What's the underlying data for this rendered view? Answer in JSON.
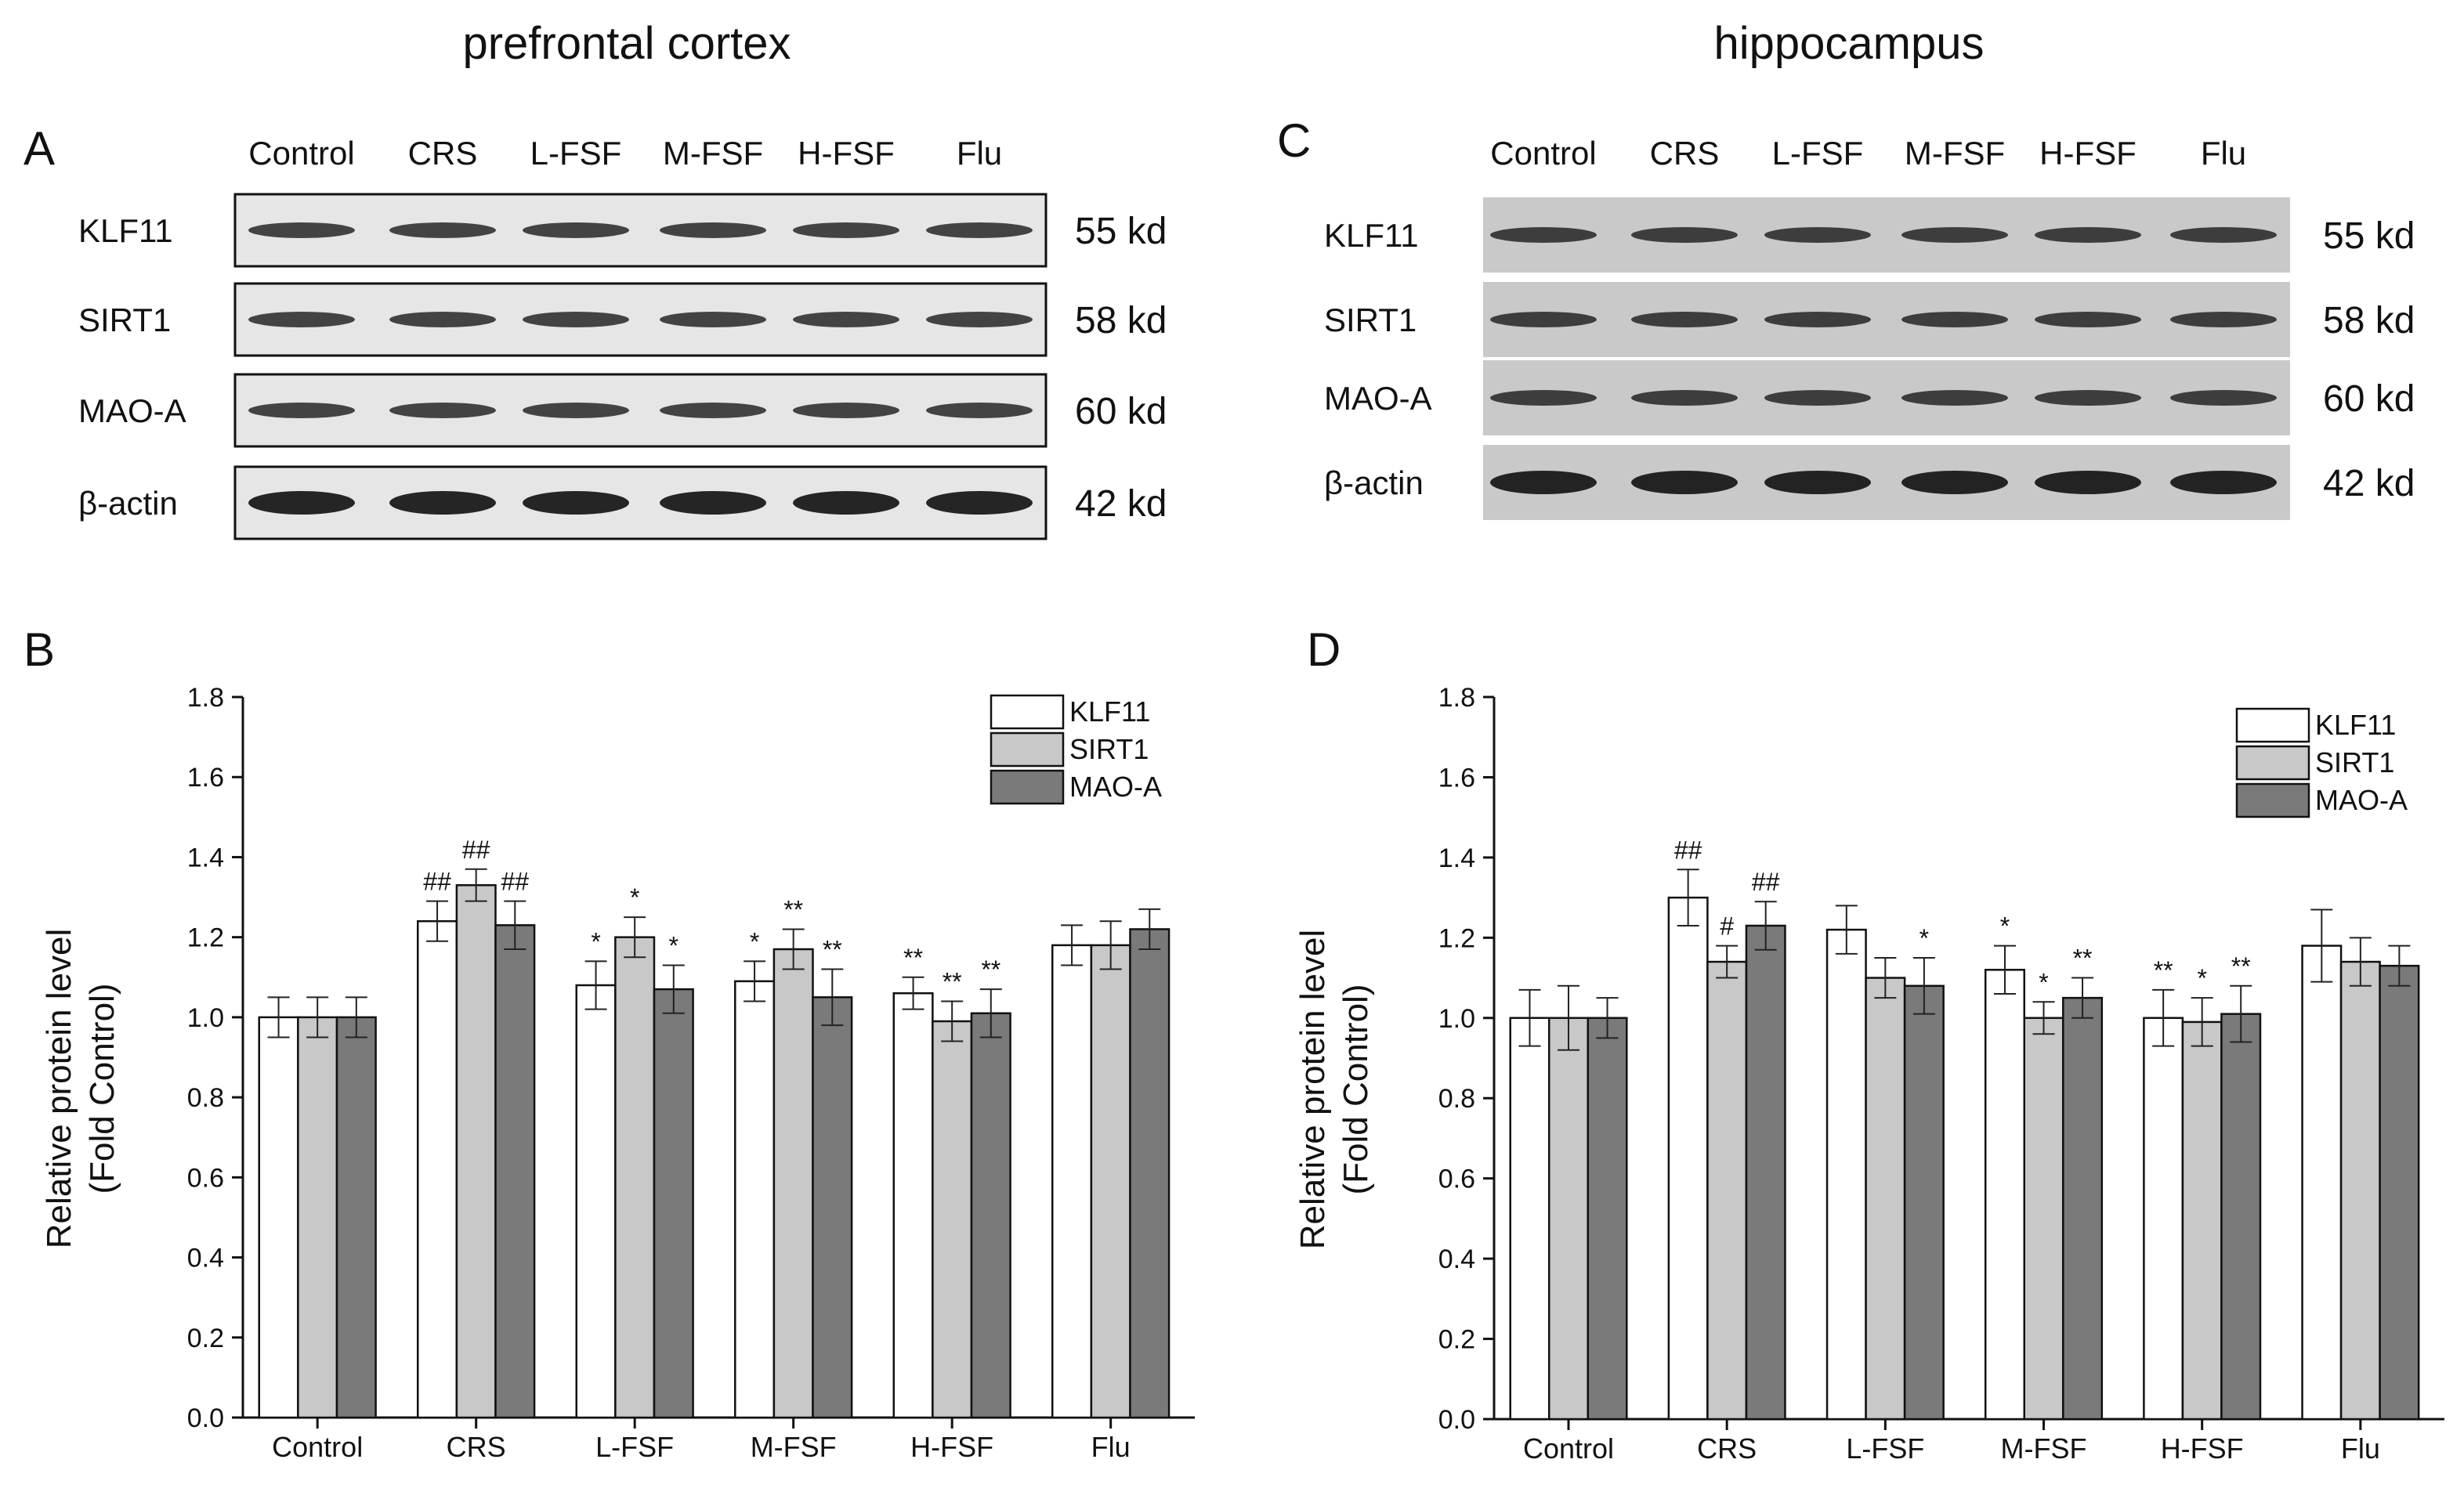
{
  "panels": {
    "left_title": "prefrontal cortex",
    "right_title": "hippocampus",
    "A": "A",
    "B": "B",
    "C": "C",
    "D": "D"
  },
  "blot_groups": [
    "Control",
    "CRS",
    "L-FSF",
    "M-FSF",
    "H-FSF",
    "Flu"
  ],
  "blot_rows": [
    {
      "label": "KLF11",
      "size": "55 kd"
    },
    {
      "label": "SIRT1",
      "size": "58 kd"
    },
    {
      "label": "MAO-A",
      "size": "60 kd"
    },
    {
      "label": "β-actin",
      "size": "42 kd"
    }
  ],
  "colors": {
    "KLF11": "#ffffff",
    "SIRT1": "#c8c8c8",
    "MAO-A": "#7a7a7a",
    "blot_bg_left": "#e6e6e6",
    "blot_bg_right": "#c9c9c9",
    "band": "#1a1a1a"
  },
  "chart_data": [
    {
      "panel": "B",
      "type": "bar",
      "categories": [
        "Control",
        "CRS",
        "L-FSF",
        "M-FSF",
        "H-FSF",
        "Flu"
      ],
      "ylabel": "Relative protein level\n(Fold Control)",
      "ylabel_lines": [
        "Relative protein level",
        "(Fold Control)"
      ],
      "ylim": [
        0,
        1.8
      ],
      "yticks": [
        "0.0",
        "0.2",
        "0.4",
        "0.6",
        "0.8",
        "1.0",
        "1.2",
        "1.4",
        "1.6",
        "1.8"
      ],
      "legend": "top-right",
      "series": [
        {
          "name": "KLF11",
          "values": [
            1.0,
            1.24,
            1.08,
            1.09,
            1.06,
            1.18
          ],
          "errors": [
            0.05,
            0.05,
            0.06,
            0.05,
            0.04,
            0.05
          ],
          "marks": [
            "",
            "##",
            "*",
            "*",
            "**",
            ""
          ]
        },
        {
          "name": "SIRT1",
          "values": [
            1.0,
            1.33,
            1.2,
            1.17,
            0.99,
            1.18
          ],
          "errors": [
            0.05,
            0.04,
            0.05,
            0.05,
            0.05,
            0.06
          ],
          "marks": [
            "",
            "##",
            "*",
            "**",
            "**",
            ""
          ]
        },
        {
          "name": "MAO-A",
          "values": [
            1.0,
            1.23,
            1.07,
            1.05,
            1.01,
            1.22
          ],
          "errors": [
            0.05,
            0.06,
            0.06,
            0.07,
            0.06,
            0.05
          ],
          "marks": [
            "",
            "##",
            "*",
            "**",
            "**",
            ""
          ]
        }
      ]
    },
    {
      "panel": "D",
      "type": "bar",
      "categories": [
        "Control",
        "CRS",
        "L-FSF",
        "M-FSF",
        "H-FSF",
        "Flu"
      ],
      "ylabel": "Relative protein level\n(Fold Control)",
      "ylabel_lines": [
        "Relative protein level",
        "(Fold Control)"
      ],
      "ylim": [
        0,
        1.8
      ],
      "yticks": [
        "0.0",
        "0.2",
        "0.4",
        "0.6",
        "0.8",
        "1.0",
        "1.2",
        "1.4",
        "1.6",
        "1.8"
      ],
      "legend": "top-right",
      "series": [
        {
          "name": "KLF11",
          "values": [
            1.0,
            1.3,
            1.22,
            1.12,
            1.0,
            1.18
          ],
          "errors": [
            0.07,
            0.07,
            0.06,
            0.06,
            0.07,
            0.09
          ],
          "marks": [
            "",
            "##",
            "",
            "*",
            "**",
            ""
          ]
        },
        {
          "name": "SIRT1",
          "values": [
            1.0,
            1.14,
            1.1,
            1.0,
            0.99,
            1.14
          ],
          "errors": [
            0.08,
            0.04,
            0.05,
            0.04,
            0.06,
            0.06
          ],
          "marks": [
            "",
            "#",
            "",
            "*",
            "*",
            ""
          ]
        },
        {
          "name": "MAO-A",
          "values": [
            1.0,
            1.23,
            1.08,
            1.05,
            1.01,
            1.13
          ],
          "errors": [
            0.05,
            0.06,
            0.07,
            0.05,
            0.07,
            0.05
          ],
          "marks": [
            "",
            "##",
            "*",
            "**",
            "**",
            ""
          ]
        }
      ]
    }
  ]
}
